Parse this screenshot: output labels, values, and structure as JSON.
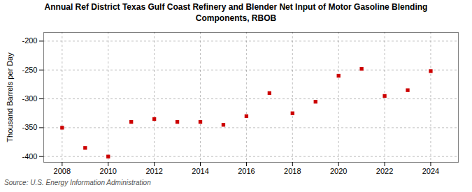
{
  "chart_data": {
    "type": "scatter",
    "title": "Annual Ref District Texas Gulf Coast Refinery and Blender Net Input of Motor Gasoline Blending\nComponents,  RBOB",
    "ylabel": "Thousand Barrels per Day",
    "source": "Source: U.S. Energy Information Administration",
    "x": [
      2008,
      2009,
      2010,
      2011,
      2012,
      2013,
      2014,
      2015,
      2016,
      2017,
      2018,
      2019,
      2020,
      2021,
      2022,
      2023,
      2024
    ],
    "values": [
      -350,
      -385,
      -400,
      -340,
      -335,
      -340,
      -340,
      -345,
      -330,
      -290,
      -325,
      -305,
      -260,
      -248,
      -295,
      -285,
      -252
    ],
    "color": "#cc0000",
    "marker": "square",
    "xlim": [
      2007.2,
      2025.2
    ],
    "xticks": [
      2008,
      2010,
      2012,
      2014,
      2016,
      2018,
      2020,
      2022,
      2024
    ],
    "ylim": [
      -410,
      -185
    ],
    "yticks": [
      -400,
      -350,
      -300,
      -250,
      -200
    ],
    "grid": true
  }
}
